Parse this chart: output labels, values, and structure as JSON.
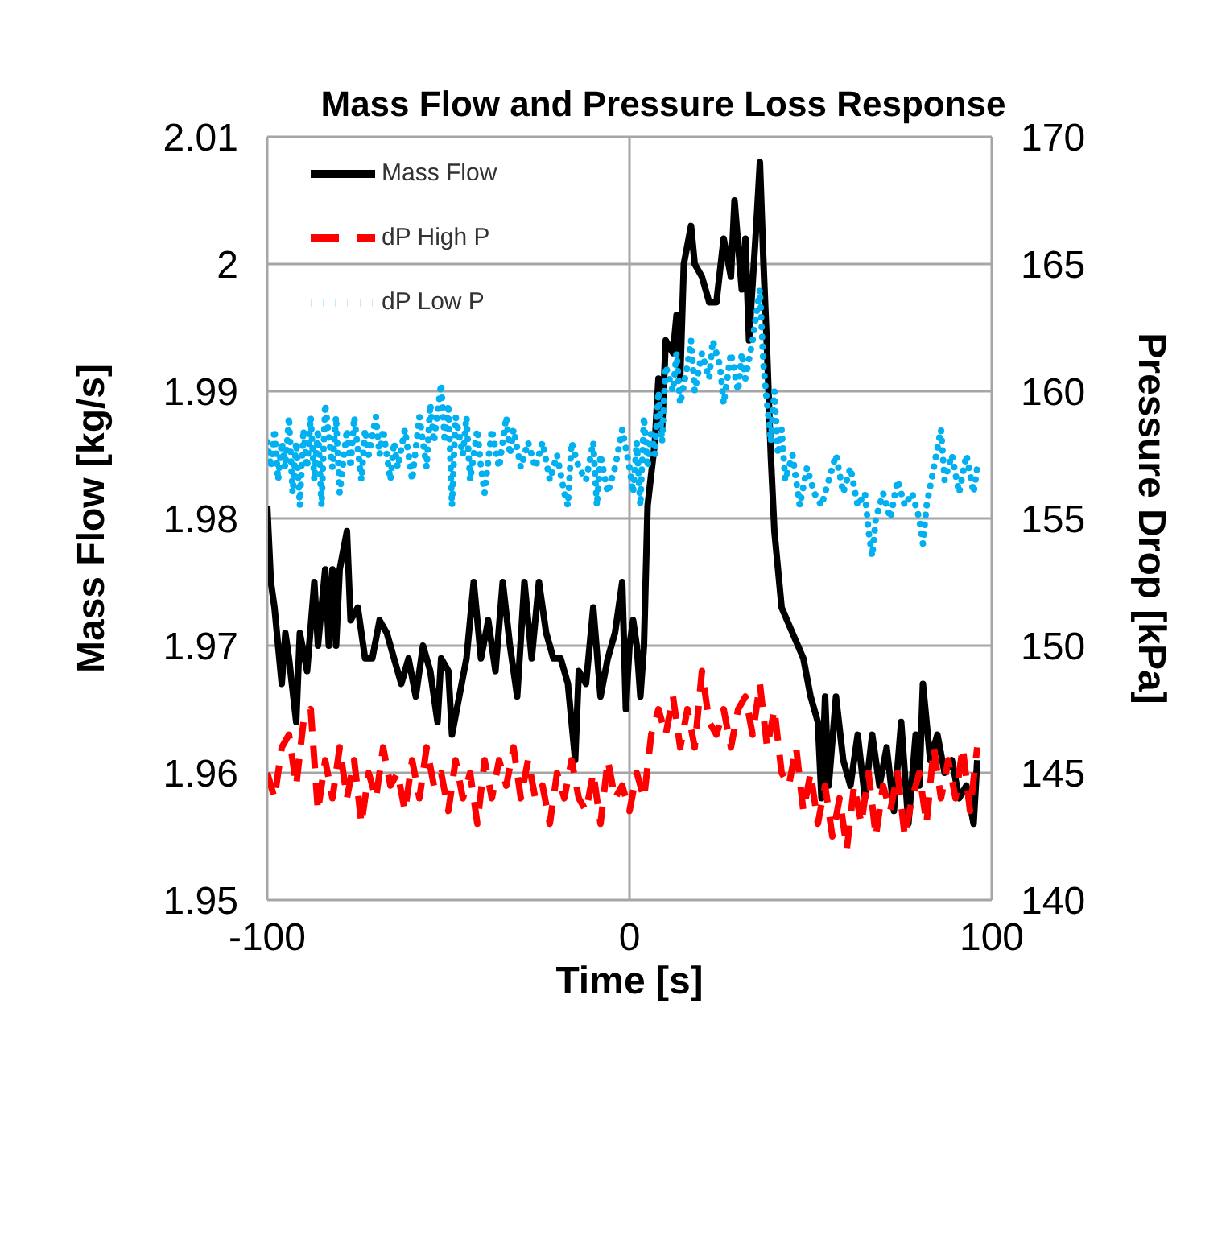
{
  "chart_data": {
    "type": "line",
    "title": "Mass Flow and Pressure Loss Response",
    "xlabel": "Time [s]",
    "ylabel": "Mass Flow [kg/s]",
    "y2label": "Pressure Drop [kPa]",
    "xlim": [
      -100,
      100
    ],
    "xticks": [
      -100,
      0,
      100
    ],
    "ylim": [
      1.95,
      2.01
    ],
    "yticks": [
      1.95,
      1.96,
      1.97,
      1.98,
      1.99,
      2,
      2.01
    ],
    "y2lim": [
      140,
      170
    ],
    "y2ticks": [
      140,
      145,
      150,
      155,
      160,
      165,
      170
    ],
    "grid": true,
    "legend": "top left",
    "marker": "none",
    "series": [
      {
        "name": "Mass Flow",
        "color": "#000000",
        "line_style": "solid",
        "x": [
          -100,
          -99,
          -98,
          -97,
          -96,
          -95,
          -94,
          -92,
          -91,
          -89,
          -87,
          -86,
          -84,
          -83,
          -82,
          -81,
          -80,
          -78,
          -77,
          -75,
          -73,
          -71,
          -69,
          -67,
          -65,
          -63,
          -61,
          -59,
          -57,
          -55,
          -53,
          -52,
          -50,
          -49,
          -47,
          -45,
          -43,
          -41,
          -39,
          -37,
          -35,
          -33,
          -31,
          -29,
          -27,
          -25,
          -23,
          -21,
          -19,
          -17,
          -15,
          -14,
          -12,
          -10,
          -8,
          -6,
          -4,
          -2,
          -1,
          0,
          1,
          2,
          3,
          4,
          5,
          7,
          8,
          9,
          10,
          12,
          13,
          14,
          15,
          17,
          18,
          20,
          22,
          24,
          26,
          28,
          29,
          31,
          32,
          33,
          35,
          36,
          37,
          38,
          39,
          40,
          42,
          45,
          48,
          50,
          52,
          53,
          54,
          55,
          57,
          59,
          61,
          63,
          65,
          67,
          69,
          71,
          73,
          75,
          77,
          79,
          80,
          81,
          83,
          85,
          87,
          89,
          91,
          93,
          95,
          96
        ],
        "values": [
          1.981,
          1.975,
          1.973,
          1.97,
          1.967,
          1.971,
          1.969,
          1.964,
          1.971,
          1.968,
          1.975,
          1.97,
          1.976,
          1.97,
          1.976,
          1.97,
          1.976,
          1.979,
          1.972,
          1.973,
          1.969,
          1.969,
          1.972,
          1.971,
          1.969,
          1.967,
          1.969,
          1.966,
          1.97,
          1.968,
          1.964,
          1.969,
          1.968,
          1.963,
          1.966,
          1.969,
          1.975,
          1.969,
          1.972,
          1.968,
          1.975,
          1.97,
          1.966,
          1.975,
          1.969,
          1.975,
          1.971,
          1.969,
          1.969,
          1.967,
          1.961,
          1.968,
          1.967,
          1.973,
          1.966,
          1.969,
          1.971,
          1.975,
          1.965,
          1.97,
          1.972,
          1.97,
          1.966,
          1.97,
          1.981,
          1.986,
          1.991,
          1.987,
          1.994,
          1.993,
          1.996,
          1.991,
          2,
          2.003,
          2,
          1.999,
          1.997,
          1.997,
          2.002,
          1.999,
          2.005,
          1.998,
          2.002,
          1.994,
          2.003,
          2.008,
          2,
          1.993,
          1.985,
          1.979,
          1.973,
          1.971,
          1.969,
          1.966,
          1.964,
          1.958,
          1.966,
          1.959,
          1.966,
          1.961,
          1.959,
          1.963,
          1.958,
          1.963,
          1.959,
          1.962,
          1.957,
          1.964,
          1.956,
          1.963,
          1.959,
          1.967,
          1.961,
          1.963,
          1.96,
          1.961,
          1.958,
          1.959,
          1.956,
          1.961
        ]
      },
      {
        "name": "dP High P",
        "color": "#ff0000",
        "line_style": "dashed",
        "axis": "y2",
        "x": [
          -100,
          -98,
          -96,
          -94,
          -92,
          -90,
          -88,
          -86,
          -84,
          -82,
          -80,
          -78,
          -76,
          -74,
          -72,
          -70,
          -68,
          -66,
          -64,
          -62,
          -60,
          -58,
          -56,
          -54,
          -52,
          -50,
          -48,
          -46,
          -44,
          -42,
          -40,
          -38,
          -36,
          -34,
          -32,
          -30,
          -28,
          -26,
          -24,
          -22,
          -20,
          -18,
          -16,
          -14,
          -12,
          -10,
          -8,
          -6,
          -4,
          -2,
          0,
          2,
          4,
          6,
          8,
          10,
          12,
          14,
          16,
          18,
          20,
          22,
          24,
          26,
          28,
          30,
          32,
          34,
          36,
          38,
          40,
          42,
          44,
          46,
          48,
          50,
          52,
          54,
          56,
          58,
          60,
          62,
          64,
          66,
          68,
          70,
          72,
          74,
          76,
          78,
          80,
          82,
          84,
          86,
          88,
          90,
          92,
          94,
          96
        ],
        "values": [
          145,
          144,
          146,
          146.5,
          144.5,
          147,
          147.5,
          143.5,
          145.5,
          144,
          146,
          144,
          145.5,
          143,
          145,
          144,
          146,
          144.5,
          145,
          143.5,
          145.5,
          144,
          146,
          144.5,
          145,
          143.5,
          145.5,
          144,
          145,
          143,
          145.5,
          144,
          145.5,
          144.5,
          146,
          144,
          145.5,
          144,
          144.5,
          143,
          145,
          144,
          145.5,
          144,
          143.5,
          145,
          143,
          145.5,
          144,
          144.5,
          143.5,
          145,
          144,
          146.5,
          147.5,
          146.5,
          148,
          146,
          147.5,
          146,
          149,
          147,
          146.5,
          147.5,
          146,
          147.5,
          148,
          146.5,
          148.5,
          146,
          147.5,
          145,
          144.5,
          146,
          143.5,
          145,
          143,
          144.5,
          142.5,
          144,
          142,
          144.5,
          143,
          145,
          142.5,
          144.5,
          143.5,
          145,
          142.5,
          144,
          145,
          143,
          146,
          144,
          145.5,
          144,
          146,
          143.5,
          146
        ]
      },
      {
        "name": "dP Low P",
        "color": "#00b0f0",
        "line_style": "dotted",
        "axis": "y2",
        "x": [
          -100,
          -99,
          -98,
          -97,
          -96,
          -95,
          -94,
          -93,
          -92,
          -91,
          -90,
          -89,
          -88,
          -87,
          -86,
          -85,
          -84,
          -82,
          -81,
          -80,
          -78,
          -77,
          -76,
          -74,
          -73,
          -72,
          -70,
          -69,
          -68,
          -66,
          -65,
          -64,
          -62,
          -60,
          -58,
          -56,
          -55,
          -54,
          -52,
          -51,
          -50,
          -49,
          -48,
          -46,
          -45,
          -44,
          -42,
          -41,
          -40,
          -38,
          -36,
          -34,
          -33,
          -32,
          -30,
          -28,
          -26,
          -24,
          -22,
          -20,
          -18,
          -17,
          -16,
          -14,
          -12,
          -10,
          -9,
          -8,
          -6,
          -4,
          -2,
          0,
          1,
          2,
          3,
          4,
          5,
          6,
          7,
          8,
          9,
          10,
          12,
          13,
          14,
          16,
          17,
          18,
          20,
          22,
          23,
          25,
          26,
          28,
          30,
          31,
          32,
          34,
          35,
          36,
          37,
          38,
          39,
          40,
          41,
          42,
          43,
          45,
          47,
          49,
          51,
          53,
          55,
          57,
          59,
          61,
          63,
          65,
          66,
          67,
          68,
          70,
          72,
          74,
          76,
          78,
          80,
          81,
          82,
          84,
          86,
          87,
          89,
          91,
          93,
          95,
          96
        ],
        "values": [
          158,
          157,
          158.5,
          156.5,
          158,
          157,
          159,
          156,
          158,
          155.5,
          158.5,
          157,
          159,
          156.5,
          158.5,
          155.5,
          159.5,
          157,
          159,
          156,
          158.5,
          157,
          159,
          156.5,
          158.5,
          157.5,
          159,
          157.5,
          158.5,
          156.5,
          158,
          157,
          158.5,
          156.5,
          159,
          157,
          159.5,
          158,
          160.3,
          158,
          159.5,
          155.5,
          159,
          157.5,
          159,
          156.5,
          158.5,
          157,
          156,
          158.5,
          157,
          159,
          157.5,
          158.5,
          157,
          158,
          157,
          158,
          156.5,
          157.5,
          156,
          155.5,
          158,
          157,
          156.5,
          158,
          155.5,
          157.5,
          156,
          157,
          158.5,
          157,
          156,
          158,
          155.5,
          159,
          157,
          158.5,
          157.5,
          160,
          158,
          161,
          160,
          161.5,
          159.5,
          161,
          162,
          160,
          161.5,
          160.5,
          162,
          161,
          159.5,
          161.5,
          160,
          161.5,
          160.5,
          162,
          163,
          164,
          161,
          159.5,
          158,
          160,
          157.5,
          158.5,
          156.5,
          157.5,
          155.5,
          157,
          156,
          155.5,
          156.5,
          157.5,
          156,
          157,
          155.5,
          156,
          154.5,
          153.5,
          155,
          156,
          155,
          156.5,
          155.5,
          156,
          155,
          154,
          155.5,
          157,
          158.5,
          156.5,
          157.5,
          156,
          157.5,
          156,
          157
        ]
      }
    ]
  }
}
